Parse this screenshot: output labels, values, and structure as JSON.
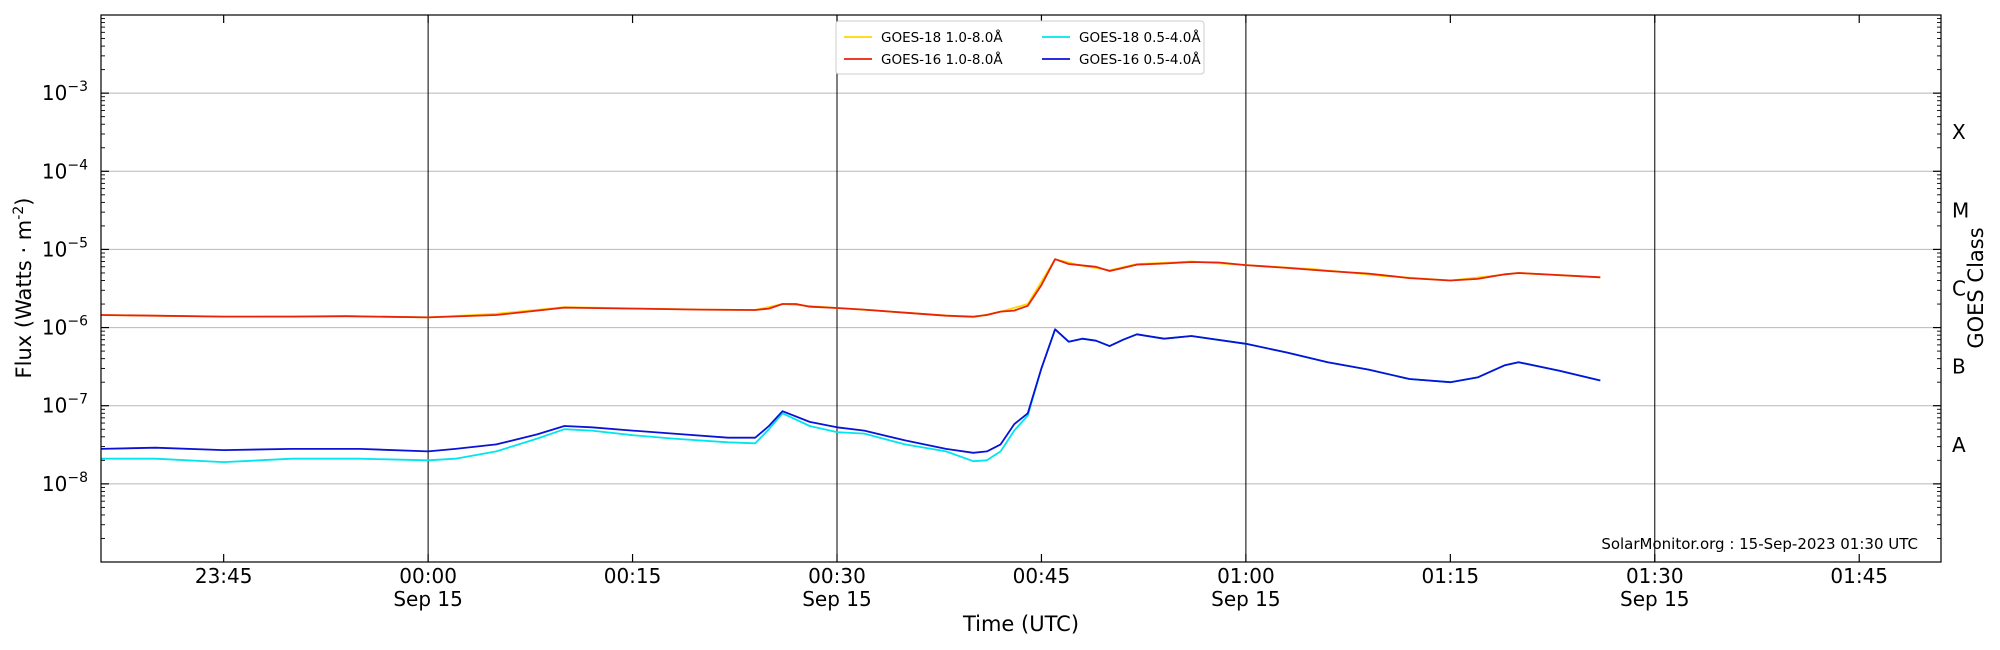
{
  "chart_data": {
    "type": "line",
    "xlabel": "Time (UTC)",
    "ylabel_base": "Flux (Watts · m",
    "ylabel_exp": "-2",
    "ylabel_end": ")",
    "right_label": "GOES Class",
    "credit": "SolarMonitor.org : 15-Sep-2023 01:30 UTC",
    "y_scale": "log",
    "ylim": [
      1e-09,
      0.01
    ],
    "xlim": [
      "2023-09-14 23:36",
      "2023-09-15 01:51"
    ],
    "grid": "horizontal at 1e-8 .. 1e-3",
    "legend_position": "top-center",
    "y_ticks": [
      {
        "value": 1e-08,
        "base": "10",
        "exp": "−8"
      },
      {
        "value": 1e-07,
        "base": "10",
        "exp": "−7"
      },
      {
        "value": 1e-06,
        "base": "10",
        "exp": "−6"
      },
      {
        "value": 1e-05,
        "base": "10",
        "exp": "−5"
      },
      {
        "value": 0.0001,
        "base": "10",
        "exp": "−4"
      },
      {
        "value": 0.001,
        "base": "10",
        "exp": "−3"
      }
    ],
    "x_ticks": [
      {
        "time": "2023-09-14 23:45",
        "label": "23:45",
        "sublabel": ""
      },
      {
        "time": "2023-09-15 00:00",
        "label": "00:00",
        "sublabel": "Sep 15"
      },
      {
        "time": "2023-09-15 00:15",
        "label": "00:15",
        "sublabel": ""
      },
      {
        "time": "2023-09-15 00:30",
        "label": "00:30",
        "sublabel": "Sep 15"
      },
      {
        "time": "2023-09-15 00:45",
        "label": "00:45",
        "sublabel": ""
      },
      {
        "time": "2023-09-15 01:00",
        "label": "01:00",
        "sublabel": "Sep 15"
      },
      {
        "time": "2023-09-15 01:15",
        "label": "01:15",
        "sublabel": ""
      },
      {
        "time": "2023-09-15 01:30",
        "label": "01:30",
        "sublabel": "Sep 15"
      },
      {
        "time": "2023-09-15 01:45",
        "label": "01:45",
        "sublabel": ""
      }
    ],
    "vertical_lines": [
      "2023-09-15 00:00",
      "2023-09-15 00:30",
      "2023-09-15 01:00",
      "2023-09-15 01:30"
    ],
    "goes_classes": [
      {
        "label": "A",
        "value": 3.16e-08
      },
      {
        "label": "B",
        "value": 3.16e-07
      },
      {
        "label": "C",
        "value": 3.16e-06
      },
      {
        "label": "M",
        "value": 3.16e-05
      },
      {
        "label": "X",
        "value": 0.000316
      }
    ],
    "series": [
      {
        "name": "GOES-18 1.0-8.0Å",
        "color": "#ffd700",
        "x": [
          "2023-09-14 23:36",
          "2023-09-14 23:45",
          "2023-09-14 23:54",
          "2023-09-15 00:00",
          "2023-09-15 00:05",
          "2023-09-15 00:10",
          "2023-09-15 00:20",
          "2023-09-15 00:24",
          "2023-09-15 00:26",
          "2023-09-15 00:30",
          "2023-09-15 00:40",
          "2023-09-15 00:42",
          "2023-09-15 00:44",
          "2023-09-15 00:46",
          "2023-09-15 00:48",
          "2023-09-15 00:50",
          "2023-09-15 00:52",
          "2023-09-15 00:56",
          "2023-09-15 01:00",
          "2023-09-15 01:05",
          "2023-09-15 01:10",
          "2023-09-15 01:15",
          "2023-09-15 01:20",
          "2023-09-15 01:26"
        ],
        "y": [
          1.45e-06,
          1.38e-06,
          1.4e-06,
          1.35e-06,
          1.5e-06,
          1.82e-06,
          1.7e-06,
          1.68e-06,
          2e-06,
          1.78e-06,
          1.35e-06,
          1.6e-06,
          2e-06,
          7.5e-06,
          6.2e-06,
          5.4e-06,
          6.5e-06,
          7e-06,
          6.3e-06,
          5.6e-06,
          4.6e-06,
          4e-06,
          5e-06,
          4.4e-06
        ]
      },
      {
        "name": "GOES-16 1.0-8.0Å",
        "color": "#e8220a",
        "x": [
          "2023-09-14 23:36",
          "2023-09-14 23:40",
          "2023-09-14 23:45",
          "2023-09-14 23:50",
          "2023-09-14 23:54",
          "2023-09-15 00:00",
          "2023-09-15 00:05",
          "2023-09-15 00:08",
          "2023-09-15 00:10",
          "2023-09-15 00:15",
          "2023-09-15 00:20",
          "2023-09-15 00:24",
          "2023-09-15 00:25",
          "2023-09-15 00:26",
          "2023-09-15 00:27",
          "2023-09-15 00:28",
          "2023-09-15 00:30",
          "2023-09-15 00:32",
          "2023-09-15 00:35",
          "2023-09-15 00:38",
          "2023-09-15 00:40",
          "2023-09-15 00:41",
          "2023-09-15 00:42",
          "2023-09-15 00:43",
          "2023-09-15 00:44",
          "2023-09-15 00:45",
          "2023-09-15 00:46",
          "2023-09-15 00:47",
          "2023-09-15 00:49",
          "2023-09-15 00:50",
          "2023-09-15 00:51",
          "2023-09-15 00:52",
          "2023-09-15 00:54",
          "2023-09-15 00:56",
          "2023-09-15 00:58",
          "2023-09-15 01:00",
          "2023-09-15 01:03",
          "2023-09-15 01:06",
          "2023-09-15 01:09",
          "2023-09-15 01:12",
          "2023-09-15 01:15",
          "2023-09-15 01:17",
          "2023-09-15 01:19",
          "2023-09-15 01:20",
          "2023-09-15 01:23",
          "2023-09-15 01:26"
        ],
        "y": [
          1.45e-06,
          1.42e-06,
          1.38e-06,
          1.38e-06,
          1.4e-06,
          1.35e-06,
          1.45e-06,
          1.65e-06,
          1.8e-06,
          1.75e-06,
          1.7e-06,
          1.68e-06,
          1.75e-06,
          2e-06,
          2e-06,
          1.85e-06,
          1.78e-06,
          1.7e-06,
          1.55e-06,
          1.42e-06,
          1.38e-06,
          1.45e-06,
          1.6e-06,
          1.65e-06,
          1.9e-06,
          3.5e-06,
          7.5e-06,
          6.5e-06,
          6e-06,
          5.3e-06,
          5.8e-06,
          6.4e-06,
          6.6e-06,
          6.9e-06,
          6.8e-06,
          6.3e-06,
          5.8e-06,
          5.3e-06,
          4.9e-06,
          4.3e-06,
          4e-06,
          4.2e-06,
          4.8e-06,
          5e-06,
          4.7e-06,
          4.4e-06
        ]
      },
      {
        "name": "GOES-18 0.5-4.0Å",
        "color": "#00e5ee",
        "x": [
          "2023-09-14 23:36",
          "2023-09-14 23:40",
          "2023-09-14 23:45",
          "2023-09-14 23:50",
          "2023-09-14 23:55",
          "2023-09-15 00:00",
          "2023-09-15 00:02",
          "2023-09-15 00:05",
          "2023-09-15 00:08",
          "2023-09-15 00:10",
          "2023-09-15 00:12",
          "2023-09-15 00:15",
          "2023-09-15 00:18",
          "2023-09-15 00:22",
          "2023-09-15 00:24",
          "2023-09-15 00:25",
          "2023-09-15 00:26",
          "2023-09-15 00:28",
          "2023-09-15 00:30",
          "2023-09-15 00:32",
          "2023-09-15 00:35",
          "2023-09-15 00:38",
          "2023-09-15 00:40",
          "2023-09-15 00:41",
          "2023-09-15 00:42",
          "2023-09-15 00:43",
          "2023-09-15 00:44",
          "2023-09-15 00:45",
          "2023-09-15 00:46",
          "2023-09-15 00:47",
          "2023-09-15 00:48",
          "2023-09-15 00:49",
          "2023-09-15 00:50",
          "2023-09-15 00:51",
          "2023-09-15 00:52",
          "2023-09-15 00:54",
          "2023-09-15 00:56",
          "2023-09-15 01:00",
          "2023-09-15 01:03",
          "2023-09-15 01:06",
          "2023-09-15 01:09",
          "2023-09-15 01:12",
          "2023-09-15 01:15",
          "2023-09-15 01:17",
          "2023-09-15 01:19",
          "2023-09-15 01:20",
          "2023-09-15 01:23",
          "2023-09-15 01:26"
        ],
        "y": [
          2.1e-08,
          2.1e-08,
          1.9e-08,
          2.1e-08,
          2.1e-08,
          2e-08,
          2.1e-08,
          2.6e-08,
          3.8e-08,
          5e-08,
          4.8e-08,
          4.2e-08,
          3.8e-08,
          3.4e-08,
          3.3e-08,
          5e-08,
          8e-08,
          5.5e-08,
          4.6e-08,
          4.4e-08,
          3.2e-08,
          2.6e-08,
          1.95e-08,
          2e-08,
          2.6e-08,
          4.8e-08,
          7.5e-08,
          3e-07,
          9.5e-07,
          6.6e-07,
          7.2e-07,
          6.8e-07,
          5.8e-07,
          7e-07,
          8.2e-07,
          7.2e-07,
          7.8e-07,
          6.2e-07,
          4.8e-07,
          3.6e-07,
          2.9e-07,
          2.2e-07,
          2e-07,
          2.3e-07,
          3.3e-07,
          3.6e-07,
          2.8e-07,
          2.1e-07
        ]
      },
      {
        "name": "GOES-16 0.5-4.0Å",
        "color": "#0a12d6",
        "x": [
          "2023-09-14 23:36",
          "2023-09-14 23:40",
          "2023-09-14 23:45",
          "2023-09-14 23:50",
          "2023-09-14 23:55",
          "2023-09-15 00:00",
          "2023-09-15 00:02",
          "2023-09-15 00:05",
          "2023-09-15 00:08",
          "2023-09-15 00:10",
          "2023-09-15 00:12",
          "2023-09-15 00:15",
          "2023-09-15 00:18",
          "2023-09-15 00:22",
          "2023-09-15 00:24",
          "2023-09-15 00:25",
          "2023-09-15 00:26",
          "2023-09-15 00:28",
          "2023-09-15 00:30",
          "2023-09-15 00:32",
          "2023-09-15 00:35",
          "2023-09-15 00:38",
          "2023-09-15 00:40",
          "2023-09-15 00:41",
          "2023-09-15 00:42",
          "2023-09-15 00:43",
          "2023-09-15 00:44",
          "2023-09-15 00:45",
          "2023-09-15 00:46",
          "2023-09-15 00:47",
          "2023-09-15 00:48",
          "2023-09-15 00:49",
          "2023-09-15 00:50",
          "2023-09-15 00:51",
          "2023-09-15 00:52",
          "2023-09-15 00:54",
          "2023-09-15 00:56",
          "2023-09-15 01:00",
          "2023-09-15 01:03",
          "2023-09-15 01:06",
          "2023-09-15 01:09",
          "2023-09-15 01:12",
          "2023-09-15 01:15",
          "2023-09-15 01:17",
          "2023-09-15 01:19",
          "2023-09-15 01:20",
          "2023-09-15 01:23",
          "2023-09-15 01:26"
        ],
        "y": [
          2.8e-08,
          2.9e-08,
          2.7e-08,
          2.8e-08,
          2.8e-08,
          2.6e-08,
          2.8e-08,
          3.2e-08,
          4.3e-08,
          5.5e-08,
          5.3e-08,
          4.8e-08,
          4.4e-08,
          3.9e-08,
          3.9e-08,
          5.5e-08,
          8.5e-08,
          6.2e-08,
          5.3e-08,
          4.8e-08,
          3.6e-08,
          2.8e-08,
          2.5e-08,
          2.6e-08,
          3.2e-08,
          5.8e-08,
          8e-08,
          3e-07,
          9.5e-07,
          6.6e-07,
          7.2e-07,
          6.8e-07,
          5.8e-07,
          7e-07,
          8.2e-07,
          7.2e-07,
          7.8e-07,
          6.2e-07,
          4.8e-07,
          3.6e-07,
          2.9e-07,
          2.2e-07,
          2e-07,
          2.3e-07,
          3.3e-07,
          3.6e-07,
          2.8e-07,
          2.1e-07
        ]
      }
    ]
  }
}
